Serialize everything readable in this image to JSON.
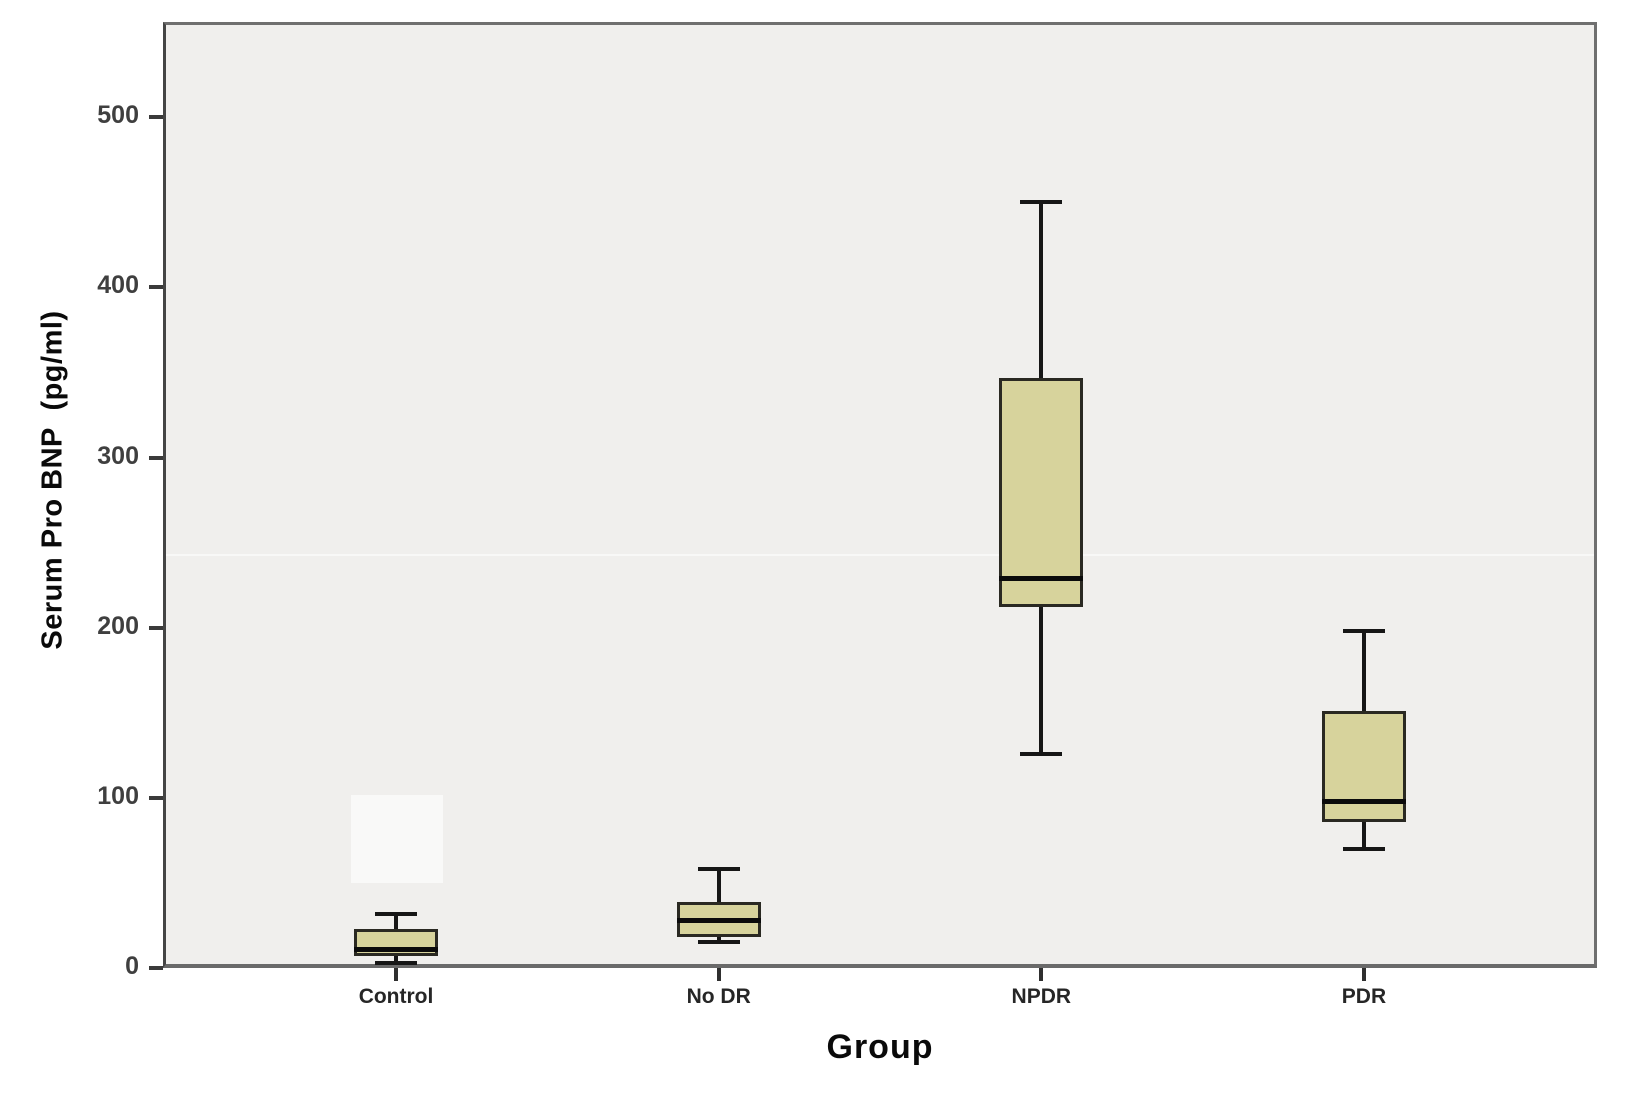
{
  "chart_data": {
    "type": "boxplot",
    "title": "",
    "xlabel": "Group",
    "ylabel": "Serum Pro BNP  (pg/ml)",
    "categories": [
      "Control",
      "No DR",
      "NPDR",
      "PDR"
    ],
    "ytick_values": [
      0,
      100,
      200,
      300,
      400,
      500
    ],
    "ylim": [
      0,
      556
    ],
    "grid": false,
    "legend": "none",
    "series": [
      {
        "name": "Control",
        "min": 3,
        "q1": 7,
        "median": 11,
        "q3": 23,
        "max": 32
      },
      {
        "name": "No DR",
        "min": 15,
        "q1": 18,
        "median": 28,
        "q3": 39,
        "max": 58
      },
      {
        "name": "NPDR",
        "min": 126,
        "q1": 212,
        "median": 229,
        "q3": 347,
        "max": 450
      },
      {
        "name": "PDR",
        "min": 70,
        "q1": 86,
        "median": 98,
        "q3": 151,
        "max": 198
      }
    ],
    "colors": {
      "box_fill": "#d7d39c",
      "box_border": "#2a2922",
      "median": "#0b0b0b",
      "whisker": "#161616",
      "plot_bg": "#f0efed",
      "frame": "#6f6f6f",
      "tick_text": "#3f3f3f",
      "label_text": "#0a0a0a"
    }
  }
}
